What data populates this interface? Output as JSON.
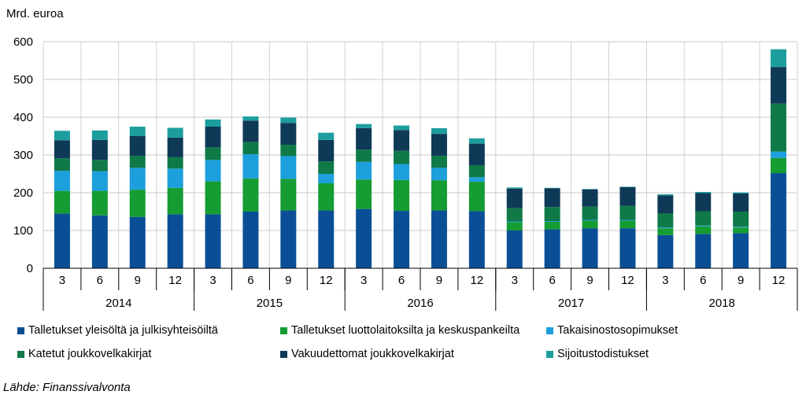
{
  "chart_data": {
    "type": "stacked-bar",
    "unit_label": "Mrd. euroa",
    "ylim": [
      0,
      600
    ],
    "yticks": [
      0,
      100,
      200,
      300,
      400,
      500,
      600
    ],
    "grid": true,
    "categories": [
      "3",
      "6",
      "9",
      "12",
      "3",
      "6",
      "9",
      "12",
      "3",
      "6",
      "9",
      "12",
      "3",
      "6",
      "9",
      "12",
      "3",
      "6",
      "9",
      "12"
    ],
    "groups": [
      {
        "label": "2014",
        "size": 4
      },
      {
        "label": "2015",
        "size": 4
      },
      {
        "label": "2016",
        "size": 4
      },
      {
        "label": "2017",
        "size": 4
      },
      {
        "label": "2018",
        "size": 4
      }
    ],
    "series": [
      {
        "name": "Talletukset yleisöltä ja julkisyhteisöiltä",
        "color": "#0a4f96",
        "values": [
          145,
          140,
          136,
          143,
          143,
          150,
          153,
          153,
          157,
          152,
          153,
          151,
          100,
          103,
          106,
          106,
          88,
          91,
          93,
          252
        ]
      },
      {
        "name": "Talletukset luottolaitoksilta ja keskuspankeilta",
        "color": "#159c33",
        "values": [
          60,
          65,
          72,
          70,
          87,
          88,
          84,
          72,
          78,
          82,
          80,
          78,
          22,
          20,
          20,
          20,
          18,
          20,
          15,
          40
        ]
      },
      {
        "name": "Takaisinostosopimukset",
        "color": "#1c9fdc",
        "values": [
          53,
          52,
          58,
          51,
          57,
          64,
          60,
          25,
          47,
          42,
          33,
          12,
          2,
          2,
          2,
          2,
          2,
          2,
          2,
          17
        ]
      },
      {
        "name": "Katetut joukkovelkakirjat",
        "color": "#0f7a48",
        "values": [
          33,
          30,
          32,
          30,
          33,
          32,
          30,
          33,
          32,
          35,
          32,
          32,
          35,
          37,
          35,
          37,
          37,
          38,
          40,
          127
        ]
      },
      {
        "name": "Vakuudettomat joukkovelkakirjat",
        "color": "#0e3a57",
        "values": [
          48,
          53,
          52,
          52,
          55,
          57,
          58,
          57,
          57,
          55,
          58,
          57,
          52,
          50,
          46,
          50,
          48,
          48,
          48,
          97
        ]
      },
      {
        "name": "Sijoitustodistukset",
        "color": "#1d9e9e",
        "values": [
          25,
          25,
          25,
          26,
          19,
          11,
          14,
          19,
          11,
          12,
          15,
          14,
          3,
          1,
          1,
          1,
          3,
          3,
          3,
          47
        ]
      }
    ]
  },
  "source": "Lähde: Finanssivalvonta"
}
